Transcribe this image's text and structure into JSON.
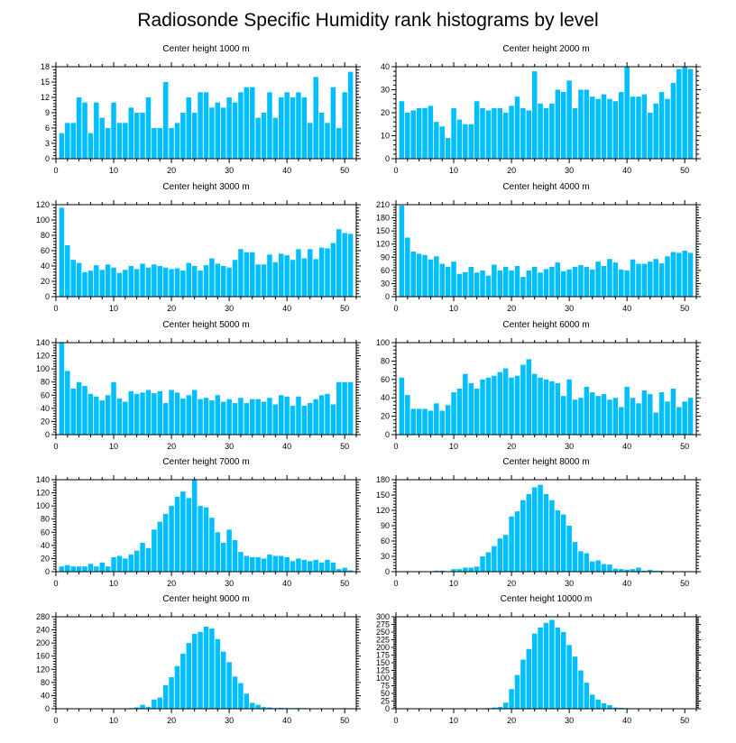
{
  "chart_data": {
    "title": "Radiosonde Specific Humidity rank histograms by level",
    "type": "bar",
    "panels": [
      {
        "title": "Center height 1000 m",
        "type": "bar",
        "xlim": [
          0,
          52
        ],
        "ylim": [
          0,
          18
        ],
        "xticks": [
          0,
          10,
          20,
          30,
          40,
          50
        ],
        "yticks": [
          0,
          3,
          6,
          9,
          12,
          15,
          18
        ],
        "x": [
          1,
          2,
          3,
          4,
          5,
          6,
          7,
          8,
          9,
          10,
          11,
          12,
          13,
          14,
          15,
          16,
          17,
          18,
          19,
          20,
          21,
          22,
          23,
          24,
          25,
          26,
          27,
          28,
          29,
          30,
          31,
          32,
          33,
          34,
          35,
          36,
          37,
          38,
          39,
          40,
          41,
          42,
          43,
          44,
          45,
          46,
          47,
          48,
          49,
          50,
          51
        ],
        "values": [
          5,
          7,
          7,
          12,
          11,
          5,
          11,
          8,
          6,
          11,
          7,
          7,
          10,
          9,
          9,
          12,
          6,
          6,
          15,
          6,
          7,
          9,
          12,
          9,
          13,
          13,
          10,
          11,
          10,
          12,
          11,
          13,
          14,
          14,
          8,
          9,
          13,
          8,
          12,
          13,
          12,
          13,
          12,
          7,
          16,
          9,
          7,
          14,
          6,
          13,
          17
        ]
      },
      {
        "title": "Center height 2000 m",
        "type": "bar",
        "xlim": [
          0,
          52
        ],
        "ylim": [
          0,
          40
        ],
        "xticks": [
          0,
          10,
          20,
          30,
          40,
          50
        ],
        "yticks": [
          0,
          10,
          20,
          30,
          40
        ],
        "x": [
          1,
          2,
          3,
          4,
          5,
          6,
          7,
          8,
          9,
          10,
          11,
          12,
          13,
          14,
          15,
          16,
          17,
          18,
          19,
          20,
          21,
          22,
          23,
          24,
          25,
          26,
          27,
          28,
          29,
          30,
          31,
          32,
          33,
          34,
          35,
          36,
          37,
          38,
          39,
          40,
          41,
          42,
          43,
          44,
          45,
          46,
          47,
          48,
          49,
          50,
          51
        ],
        "values": [
          25,
          20,
          21,
          22,
          22,
          23,
          16,
          14,
          9,
          22,
          17,
          15,
          15,
          25,
          22,
          21,
          22,
          22,
          20,
          23,
          27,
          22,
          21,
          38,
          24,
          22,
          24,
          30,
          29,
          34,
          22,
          30,
          30,
          27,
          26,
          28,
          26,
          25,
          29,
          40,
          27,
          27,
          28,
          20,
          24,
          29,
          26,
          33,
          39,
          40,
          39
        ]
      },
      {
        "title": "Center height 3000 m",
        "type": "bar",
        "xlim": [
          0,
          52
        ],
        "ylim": [
          0,
          120
        ],
        "xticks": [
          0,
          10,
          20,
          30,
          40,
          50
        ],
        "yticks": [
          0,
          20,
          40,
          60,
          80,
          100,
          120
        ],
        "x": [
          1,
          2,
          3,
          4,
          5,
          6,
          7,
          8,
          9,
          10,
          11,
          12,
          13,
          14,
          15,
          16,
          17,
          18,
          19,
          20,
          21,
          22,
          23,
          24,
          25,
          26,
          27,
          28,
          29,
          30,
          31,
          32,
          33,
          34,
          35,
          36,
          37,
          38,
          39,
          40,
          41,
          42,
          43,
          44,
          45,
          46,
          47,
          48,
          49,
          50,
          51
        ],
        "values": [
          116,
          67,
          48,
          44,
          32,
          34,
          41,
          35,
          42,
          38,
          31,
          35,
          40,
          36,
          43,
          38,
          42,
          40,
          38,
          36,
          37,
          34,
          44,
          40,
          34,
          41,
          50,
          43,
          40,
          38,
          48,
          62,
          58,
          58,
          42,
          42,
          55,
          45,
          56,
          54,
          48,
          62,
          50,
          62,
          49,
          64,
          63,
          70,
          88,
          83,
          82
        ]
      },
      {
        "title": "Center height 4000 m",
        "type": "bar",
        "xlim": [
          0,
          52
        ],
        "ylim": [
          0,
          210
        ],
        "xticks": [
          0,
          10,
          20,
          30,
          40,
          50
        ],
        "yticks": [
          0,
          30,
          60,
          90,
          120,
          150,
          180,
          210
        ],
        "x": [
          1,
          2,
          3,
          4,
          5,
          6,
          7,
          8,
          9,
          10,
          11,
          12,
          13,
          14,
          15,
          16,
          17,
          18,
          19,
          20,
          21,
          22,
          23,
          24,
          25,
          26,
          27,
          28,
          29,
          30,
          31,
          32,
          33,
          34,
          35,
          36,
          37,
          38,
          39,
          40,
          41,
          42,
          43,
          44,
          45,
          46,
          47,
          48,
          49,
          50,
          51
        ],
        "values": [
          208,
          135,
          103,
          98,
          95,
          85,
          92,
          75,
          68,
          80,
          52,
          56,
          68,
          55,
          60,
          48,
          73,
          60,
          68,
          60,
          70,
          45,
          60,
          68,
          55,
          63,
          68,
          78,
          58,
          62,
          68,
          72,
          68,
          62,
          80,
          70,
          86,
          78,
          62,
          60,
          85,
          75,
          75,
          80,
          86,
          76,
          92,
          102,
          100,
          105,
          100
        ]
      },
      {
        "title": "Center height 5000 m",
        "type": "bar",
        "xlim": [
          0,
          52
        ],
        "ylim": [
          0,
          140
        ],
        "xticks": [
          0,
          10,
          20,
          30,
          40,
          50
        ],
        "yticks": [
          0,
          20,
          40,
          60,
          80,
          100,
          120,
          140
        ],
        "x": [
          1,
          2,
          3,
          4,
          5,
          6,
          7,
          8,
          9,
          10,
          11,
          12,
          13,
          14,
          15,
          16,
          17,
          18,
          19,
          20,
          21,
          22,
          23,
          24,
          25,
          26,
          27,
          28,
          29,
          30,
          31,
          32,
          33,
          34,
          35,
          36,
          37,
          38,
          39,
          40,
          41,
          42,
          43,
          44,
          45,
          46,
          47,
          48,
          49,
          50,
          51
        ],
        "values": [
          140,
          97,
          70,
          80,
          74,
          62,
          58,
          52,
          60,
          80,
          55,
          50,
          66,
          62,
          64,
          68,
          63,
          66,
          48,
          68,
          64,
          55,
          60,
          68,
          54,
          56,
          52,
          60,
          50,
          54,
          48,
          56,
          48,
          54,
          54,
          50,
          56,
          46,
          60,
          58,
          44,
          58,
          44,
          48,
          54,
          60,
          62,
          46,
          80,
          80,
          80
        ]
      },
      {
        "title": "Center height 6000 m",
        "type": "bar",
        "xlim": [
          0,
          52
        ],
        "ylim": [
          0,
          100
        ],
        "xticks": [
          0,
          10,
          20,
          30,
          40,
          50
        ],
        "yticks": [
          0,
          20,
          40,
          60,
          80,
          100
        ],
        "x": [
          1,
          2,
          3,
          4,
          5,
          6,
          7,
          8,
          9,
          10,
          11,
          12,
          13,
          14,
          15,
          16,
          17,
          18,
          19,
          20,
          21,
          22,
          23,
          24,
          25,
          26,
          27,
          28,
          29,
          30,
          31,
          32,
          33,
          34,
          35,
          36,
          37,
          38,
          39,
          40,
          41,
          42,
          43,
          44,
          45,
          46,
          47,
          48,
          49,
          50,
          51
        ],
        "values": [
          62,
          43,
          28,
          28,
          28,
          26,
          34,
          26,
          32,
          46,
          50,
          66,
          56,
          50,
          60,
          62,
          64,
          68,
          72,
          62,
          64,
          76,
          82,
          66,
          62,
          60,
          58,
          56,
          42,
          60,
          38,
          40,
          52,
          46,
          42,
          44,
          38,
          40,
          30,
          52,
          40,
          34,
          48,
          44,
          24,
          46,
          36,
          50,
          30,
          36,
          40
        ]
      },
      {
        "title": "Center height 7000 m",
        "type": "bar",
        "xlim": [
          0,
          52
        ],
        "ylim": [
          0,
          140
        ],
        "xticks": [
          0,
          10,
          20,
          30,
          40,
          50
        ],
        "yticks": [
          0,
          20,
          40,
          60,
          80,
          100,
          120,
          140
        ],
        "x": [
          1,
          2,
          3,
          4,
          5,
          6,
          7,
          8,
          9,
          10,
          11,
          12,
          13,
          14,
          15,
          16,
          17,
          18,
          19,
          20,
          21,
          22,
          23,
          24,
          25,
          26,
          27,
          28,
          29,
          30,
          31,
          32,
          33,
          34,
          35,
          36,
          37,
          38,
          39,
          40,
          41,
          42,
          43,
          44,
          45,
          46,
          47,
          48,
          49,
          50,
          51
        ],
        "values": [
          8,
          10,
          8,
          8,
          8,
          12,
          8,
          14,
          8,
          22,
          24,
          20,
          26,
          32,
          44,
          36,
          64,
          76,
          88,
          100,
          114,
          122,
          112,
          140,
          100,
          98,
          82,
          60,
          44,
          64,
          48,
          30,
          24,
          22,
          22,
          20,
          26,
          24,
          24,
          22,
          16,
          20,
          18,
          16,
          18,
          14,
          18,
          14,
          4,
          6,
          2
        ]
      },
      {
        "title": "Center height 8000 m",
        "type": "bar",
        "xlim": [
          0,
          52
        ],
        "ylim": [
          0,
          180
        ],
        "xticks": [
          0,
          10,
          20,
          30,
          40,
          50
        ],
        "yticks": [
          0,
          30,
          60,
          90,
          120,
          150,
          180
        ],
        "x": [
          1,
          2,
          3,
          4,
          5,
          6,
          7,
          8,
          9,
          10,
          11,
          12,
          13,
          14,
          15,
          16,
          17,
          18,
          19,
          20,
          21,
          22,
          23,
          24,
          25,
          26,
          27,
          28,
          29,
          30,
          31,
          32,
          33,
          34,
          35,
          36,
          37,
          38,
          39,
          40,
          41,
          42,
          43,
          44,
          45,
          46,
          47,
          48,
          49,
          50,
          51
        ],
        "values": [
          0,
          0,
          0,
          0,
          0,
          0,
          2,
          2,
          0,
          5,
          5,
          8,
          8,
          10,
          30,
          38,
          50,
          65,
          72,
          108,
          118,
          140,
          152,
          165,
          170,
          152,
          140,
          120,
          112,
          90,
          58,
          40,
          36,
          20,
          22,
          15,
          14,
          6,
          5,
          4,
          5,
          8,
          2,
          4,
          2,
          2,
          0,
          0,
          0,
          0,
          0
        ]
      },
      {
        "title": "Center height 9000 m",
        "type": "bar",
        "xlim": [
          0,
          52
        ],
        "ylim": [
          0,
          280
        ],
        "xticks": [
          0,
          10,
          20,
          30,
          40,
          50
        ],
        "yticks": [
          0,
          40,
          80,
          120,
          160,
          200,
          240,
          280
        ],
        "x": [
          1,
          2,
          3,
          4,
          5,
          6,
          7,
          8,
          9,
          10,
          11,
          12,
          13,
          14,
          15,
          16,
          17,
          18,
          19,
          20,
          21,
          22,
          23,
          24,
          25,
          26,
          27,
          28,
          29,
          30,
          31,
          32,
          33,
          34,
          35,
          36,
          37,
          38,
          39,
          40,
          41,
          42,
          43,
          44,
          45,
          46,
          47,
          48,
          49,
          50,
          51
        ],
        "values": [
          0,
          0,
          0,
          0,
          0,
          0,
          0,
          0,
          0,
          0,
          0,
          0,
          2,
          4,
          12,
          6,
          28,
          34,
          72,
          96,
          130,
          168,
          200,
          228,
          234,
          250,
          244,
          212,
          174,
          142,
          98,
          78,
          46,
          18,
          12,
          5,
          4,
          2,
          3,
          2,
          2,
          2,
          2,
          0,
          0,
          0,
          0,
          0,
          0,
          2,
          0
        ]
      },
      {
        "title": "Center height 10000 m",
        "type": "bar",
        "xlim": [
          0,
          52
        ],
        "ylim": [
          0,
          300
        ],
        "xticks": [
          0,
          10,
          20,
          30,
          40,
          50
        ],
        "yticks": [
          0,
          25,
          50,
          75,
          100,
          125,
          150,
          175,
          200,
          225,
          250,
          275,
          300
        ],
        "x": [
          1,
          2,
          3,
          4,
          5,
          6,
          7,
          8,
          9,
          10,
          11,
          12,
          13,
          14,
          15,
          16,
          17,
          18,
          19,
          20,
          21,
          22,
          23,
          24,
          25,
          26,
          27,
          28,
          29,
          30,
          31,
          32,
          33,
          34,
          35,
          36,
          37,
          38,
          39,
          40,
          41,
          42,
          43,
          44,
          45,
          46,
          47,
          48,
          49,
          50,
          51
        ],
        "values": [
          0,
          0,
          0,
          0,
          0,
          0,
          0,
          0,
          0,
          0,
          0,
          0,
          0,
          0,
          0,
          2,
          4,
          6,
          20,
          64,
          110,
          160,
          195,
          245,
          265,
          280,
          290,
          265,
          250,
          208,
          170,
          125,
          85,
          46,
          30,
          18,
          12,
          4,
          3,
          2,
          0,
          0,
          0,
          0,
          0,
          0,
          0,
          0,
          0,
          0,
          0
        ]
      }
    ]
  }
}
